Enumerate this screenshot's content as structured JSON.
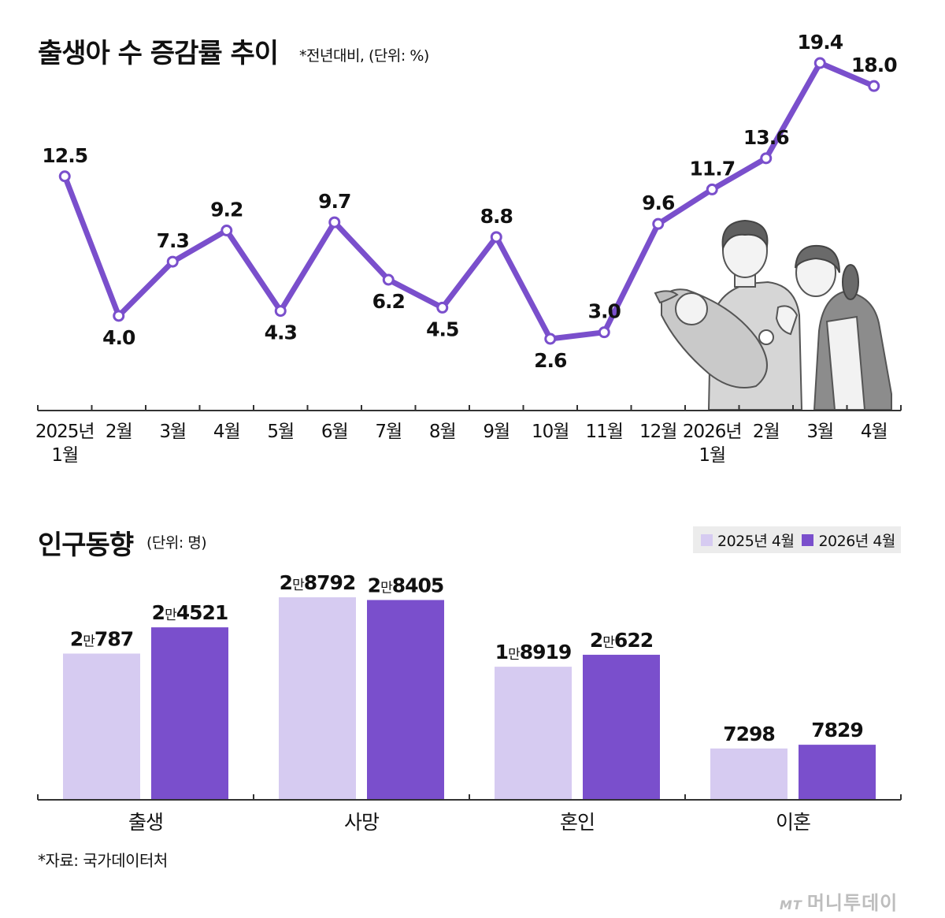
{
  "colors": {
    "accent": "#7a4fcc",
    "light": "#d6cbf1",
    "axis": "#333333"
  },
  "line_section": {
    "title": "출생아 수 증감률 추이",
    "note": "*전년대비, (단위: %)"
  },
  "bar_section": {
    "title": "인구동향",
    "note": "(단위: 명)"
  },
  "footer": {
    "source": "*자료: 국가데이터처",
    "logo_mark": "MT",
    "logo_text": "머니투데이"
  },
  "chart_data": [
    {
      "type": "line",
      "title": "출생아 수 증감률 추이",
      "unit_note": "*전년대비, (단위: %)",
      "x": [
        [
          "2025년",
          "1월"
        ],
        [
          "2월"
        ],
        [
          "3월"
        ],
        [
          "4월"
        ],
        [
          "5월"
        ],
        [
          "6월"
        ],
        [
          "7월"
        ],
        [
          "8월"
        ],
        [
          "9월"
        ],
        [
          "10월"
        ],
        [
          "11월"
        ],
        [
          "12월"
        ],
        [
          "2026년",
          "1월"
        ],
        [
          "2월"
        ],
        [
          "3월"
        ],
        [
          "4월"
        ]
      ],
      "series": [
        {
          "values": [
            12.5,
            4.0,
            7.3,
            9.2,
            4.3,
            9.7,
            6.2,
            4.5,
            8.8,
            2.6,
            3.0,
            9.6,
            11.7,
            13.6,
            19.4,
            18.0
          ],
          "labels": [
            "12.5",
            "4.0",
            "7.3",
            "9.2",
            "4.3",
            "9.7",
            "6.2",
            "4.5",
            "8.8",
            "2.6",
            "3.0",
            "9.6",
            "11.7",
            "13.6",
            "19.4",
            "18.0"
          ],
          "label_pos": [
            "above",
            "below",
            "above",
            "above",
            "below",
            "above",
            "below",
            "below",
            "above",
            "below",
            "above",
            "above",
            "above",
            "above",
            "above",
            "above"
          ]
        }
      ],
      "grid": false
    },
    {
      "type": "bar",
      "title": "인구동향",
      "unit_note": "(단위: 명)",
      "categories": [
        "출생",
        "사망",
        "혼인",
        "이혼"
      ],
      "series": [
        {
          "name": "2025년 4월",
          "values": [
            20787,
            28792,
            18919,
            7298
          ],
          "labels": [
            [
              "2",
              "만",
              "787"
            ],
            [
              "2",
              "만",
              "8792"
            ],
            [
              "1",
              "만",
              "8919"
            ],
            [
              "",
              "",
              "7298"
            ]
          ]
        },
        {
          "name": "2026년 4월",
          "values": [
            24521,
            28405,
            20622,
            7829
          ],
          "labels": [
            [
              "2",
              "만",
              "4521"
            ],
            [
              "2",
              "만",
              "8405"
            ],
            [
              "2",
              "만",
              "622"
            ],
            [
              "",
              "",
              "7829"
            ]
          ]
        }
      ],
      "legend_position": "top-right",
      "grid": false
    }
  ]
}
